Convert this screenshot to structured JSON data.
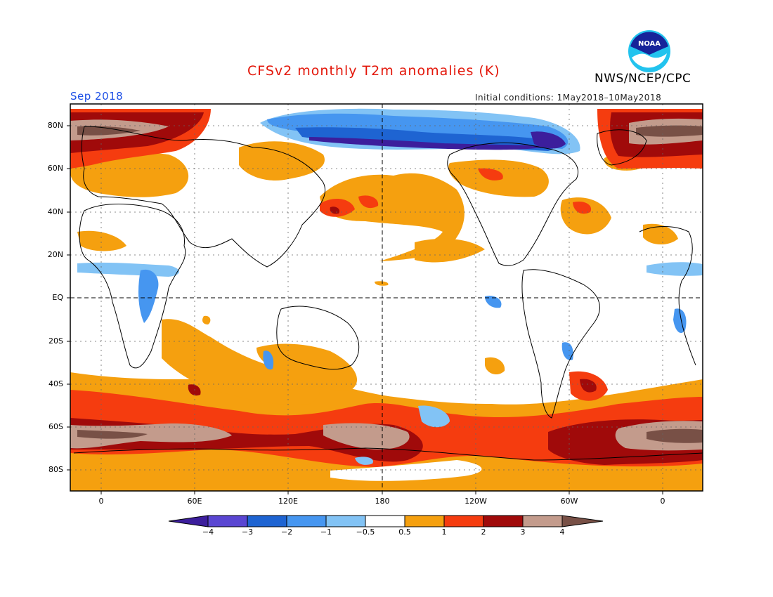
{
  "title": "CFSv2 monthly T2m anomalies (K)",
  "organization": "NWS/NCEP/CPC",
  "logo_text": "NOAA",
  "period": "Sep 2018",
  "initial_conditions": "Initial conditions: 1May2018–10May2018",
  "lat_labels": [
    "80N",
    "60N",
    "40N",
    "20N",
    "EQ",
    "20S",
    "40S",
    "60S",
    "80S"
  ],
  "lon_labels": [
    "0",
    "60E",
    "120E",
    "180",
    "120W",
    "60W",
    "0"
  ],
  "colorbar": {
    "labels": [
      "−4",
      "−3",
      "−2",
      "−1",
      "−0.5",
      "0.5",
      "1",
      "2",
      "3",
      "4"
    ],
    "colors": [
      "#3c1e9c",
      "#5a46d2",
      "#1e64d2",
      "#4696f0",
      "#82c3f5",
      "#ffffff",
      "#f5a00f",
      "#f53c0f",
      "#a00a0a",
      "#c39b8c",
      "#785046"
    ]
  },
  "colors": {
    "title": "#e3170a",
    "period": "#1e50e6",
    "weak_warm": "#f5a00f",
    "warm": "#f53c0f",
    "strong_warm": "#a00a0a",
    "very_warm": "#c39b8c",
    "extreme_warm": "#785046",
    "weak_cool": "#82c3f5",
    "cool": "#4696f0",
    "cold": "#1e64d2",
    "very_cold": "#3c1e9c"
  }
}
